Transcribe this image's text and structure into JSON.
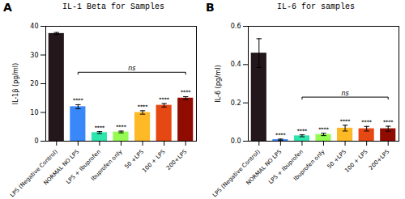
{
  "chart_data": [
    {
      "type": "bar",
      "title": "IL-1 Beta for Samples",
      "panel_label": "A",
      "categories": [
        "LPS (Negative Control)",
        "NORMAL NO LPS",
        "LPS + Ibuprofen",
        "Ibuprofen only",
        "50 +LPS",
        "100 + LPS",
        "200+LPS"
      ],
      "values": [
        37.5,
        12.0,
        3.0,
        3.2,
        10.0,
        12.5,
        15.0
      ],
      "errors": [
        0.35,
        0.7,
        0.35,
        0.3,
        0.6,
        0.6,
        0.5
      ],
      "ylabel": "IL-1β (pg/ml)",
      "ylim": [
        0,
        40
      ],
      "yticks": [
        0,
        10,
        20,
        30,
        40
      ],
      "sig_labels": [
        "",
        "****",
        "****",
        "****",
        "****",
        "****",
        "****"
      ],
      "ns_bracket": {
        "from": "NORMAL NO LPS",
        "to": "200+LPS",
        "y": 24,
        "label": "ns"
      },
      "grid": false
    },
    {
      "type": "bar",
      "title": "IL-6 for samples",
      "panel_label": "B",
      "categories": [
        "LPS (Negative Control)",
        "NORMAL NO LPS",
        "LPS + Ibuprofen",
        "Ibuprofen only",
        "50 +LPS",
        "100 + LPS",
        "200+LPS"
      ],
      "values": [
        0.46,
        0.008,
        0.028,
        0.035,
        0.068,
        0.065,
        0.065
      ],
      "errors": [
        0.075,
        0.003,
        0.005,
        0.006,
        0.015,
        0.012,
        0.013
      ],
      "ylabel": "IL-6 (pg/ml)",
      "ylim": [
        0,
        0.6
      ],
      "yticks": [
        {
          "value": 0,
          "label": "0.0"
        },
        0.2,
        0.4,
        0.6
      ],
      "sig_labels": [
        "",
        "****",
        "****",
        "****",
        "****",
        "****",
        "****"
      ],
      "ns_bracket": {
        "from": "LPS + Ibuprofen",
        "to": "200+LPS",
        "y": 0.23,
        "label": "ns"
      },
      "grid": false
    }
  ]
}
